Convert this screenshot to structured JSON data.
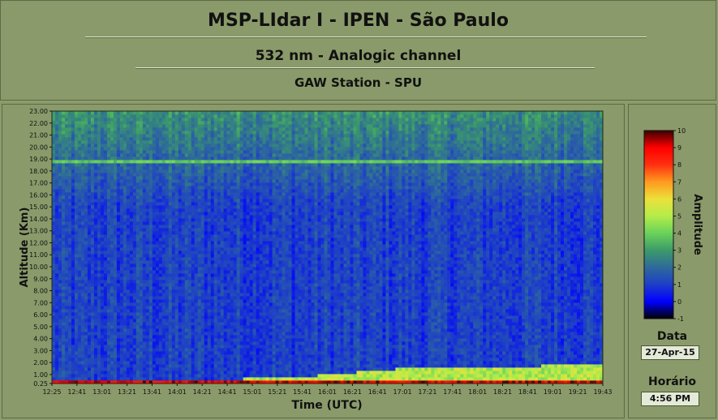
{
  "header": {
    "title": "MSP-LIdar I - IPEN - São Paulo",
    "subtitle": "532 nm - Analogic channel",
    "station": "GAW Station - SPU"
  },
  "side": {
    "date_label": "Data",
    "date_value": "27-Apr-15",
    "time_label": "Horário",
    "time_value": "4:56 PM"
  },
  "colors": {
    "background": "#8c9c6c",
    "colormap": [
      "#000000",
      "#0000ff",
      "#1e3ec8",
      "#2e6a9a",
      "#3c9a6a",
      "#6ad25a",
      "#b4ec4a",
      "#ece03a",
      "#ff9a1e",
      "#ff3010",
      "#ff0000",
      "#3a0000"
    ]
  },
  "chart_data": {
    "type": "heatmap",
    "xlabel": "Time (UTC)",
    "ylabel": "Altitude (Km)",
    "colorbar_label": "Amplitude",
    "x_ticks": [
      "12:25",
      "12:41",
      "13:01",
      "13:21",
      "13:41",
      "14:01",
      "14:21",
      "14:41",
      "15:01",
      "15:21",
      "15:41",
      "16:01",
      "16:21",
      "16:41",
      "17:01",
      "17:21",
      "17:41",
      "18:01",
      "18:21",
      "18:41",
      "19:01",
      "19:21",
      "19:43"
    ],
    "y_ticks": [
      "0.25",
      "1.00",
      "2.00",
      "3.00",
      "4.00",
      "5.00",
      "6.00",
      "7.00",
      "8.00",
      "9.00",
      "10.00",
      "11.00",
      "12.00",
      "13.00",
      "14.00",
      "15.00",
      "16.00",
      "17.00",
      "18.00",
      "19.00",
      "20.00",
      "21.00",
      "22.00",
      "23.00"
    ],
    "ylim": [
      0.25,
      23
    ],
    "colorbar_ticks": [
      "-1",
      "0",
      "1",
      "2",
      "3",
      "4",
      "5",
      "6",
      "7",
      "8",
      "9",
      "10"
    ],
    "zlim": [
      -1,
      10
    ],
    "features": {
      "boundary_layer_top_km": [
        {
          "time": "12:25",
          "km": 0.5
        },
        {
          "time": "14:01",
          "km": 0.55
        },
        {
          "time": "15:21",
          "km": 0.7
        },
        {
          "time": "16:21",
          "km": 1.1
        },
        {
          "time": "16:41",
          "km": 1.4
        },
        {
          "time": "17:21",
          "km": 1.55
        },
        {
          "time": "18:01",
          "km": 1.65
        },
        {
          "time": "19:01",
          "km": 1.75
        },
        {
          "time": "19:43",
          "km": 1.85
        }
      ],
      "cirrus_layer_km": 18.8
    }
  }
}
